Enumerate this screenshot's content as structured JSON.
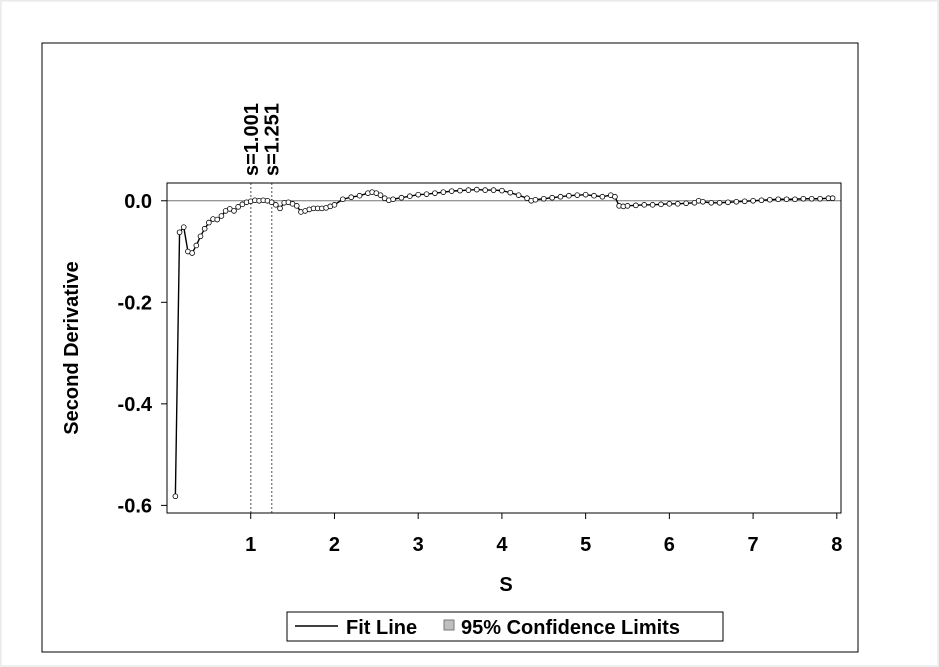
{
  "chart_data": {
    "type": "line",
    "title": "",
    "xlabel": "S",
    "ylabel": "Second Derivative",
    "xlim": [
      0,
      8.05
    ],
    "ylim": [
      -0.615,
      0.035
    ],
    "xticks": [
      1,
      2,
      3,
      4,
      5,
      6,
      7,
      8
    ],
    "xtick_labels": [
      "1",
      "2",
      "3",
      "4",
      "5",
      "6",
      "7",
      "8"
    ],
    "yticks": [
      0.0,
      -0.2,
      -0.4,
      -0.6
    ],
    "ytick_labels": [
      "0.0",
      "-0.2",
      "-0.4",
      "-0.6"
    ],
    "reference_lines": [
      {
        "axis": "x",
        "value": 1.001,
        "label": "s=1.001"
      },
      {
        "axis": "x",
        "value": 1.251,
        "label": "s=1.251"
      },
      {
        "axis": "y",
        "value": 0.0,
        "label": ""
      }
    ],
    "legend": {
      "position": "bottom",
      "entries": [
        "Fit Line",
        "95% Confidence Limits"
      ]
    },
    "series": [
      {
        "name": "Fit Line",
        "x": [
          0.1,
          0.15,
          0.2,
          0.25,
          0.3,
          0.35,
          0.4,
          0.45,
          0.5,
          0.55,
          0.6,
          0.65,
          0.7,
          0.75,
          0.8,
          0.85,
          0.9,
          0.95,
          1.0,
          1.05,
          1.1,
          1.15,
          1.2,
          1.25,
          1.3,
          1.35,
          1.4,
          1.45,
          1.5,
          1.55,
          1.6,
          1.65,
          1.7,
          1.75,
          1.8,
          1.85,
          1.9,
          1.95,
          2.0,
          2.1,
          2.2,
          2.3,
          2.4,
          2.45,
          2.5,
          2.55,
          2.6,
          2.65,
          2.7,
          2.8,
          2.9,
          3.0,
          3.1,
          3.2,
          3.3,
          3.4,
          3.5,
          3.6,
          3.7,
          3.8,
          3.9,
          4.0,
          4.1,
          4.2,
          4.3,
          4.35,
          4.4,
          4.5,
          4.6,
          4.7,
          4.8,
          4.9,
          5.0,
          5.1,
          5.2,
          5.3,
          5.35,
          5.4,
          5.45,
          5.5,
          5.6,
          5.7,
          5.8,
          5.9,
          6.0,
          6.1,
          6.2,
          6.3,
          6.35,
          6.4,
          6.5,
          6.6,
          6.7,
          6.8,
          6.9,
          7.0,
          7.1,
          7.2,
          7.3,
          7.4,
          7.5,
          7.6,
          7.7,
          7.8,
          7.9,
          7.95
        ],
        "y": [
          -0.582,
          -0.062,
          -0.052,
          -0.1,
          -0.103,
          -0.088,
          -0.07,
          -0.055,
          -0.043,
          -0.036,
          -0.037,
          -0.03,
          -0.02,
          -0.016,
          -0.02,
          -0.012,
          -0.007,
          -0.003,
          -0.001,
          0.001,
          0.0,
          0.001,
          0.0,
          -0.003,
          -0.008,
          -0.015,
          -0.004,
          -0.003,
          -0.006,
          -0.01,
          -0.022,
          -0.02,
          -0.017,
          -0.015,
          -0.015,
          -0.015,
          -0.014,
          -0.011,
          -0.008,
          0.003,
          0.007,
          0.01,
          0.015,
          0.017,
          0.015,
          0.011,
          0.005,
          0.001,
          0.003,
          0.006,
          0.009,
          0.012,
          0.013,
          0.015,
          0.017,
          0.019,
          0.02,
          0.021,
          0.022,
          0.021,
          0.021,
          0.02,
          0.016,
          0.011,
          0.005,
          0.0,
          0.002,
          0.004,
          0.006,
          0.008,
          0.01,
          0.011,
          0.012,
          0.01,
          0.008,
          0.011,
          0.008,
          -0.01,
          -0.011,
          -0.01,
          -0.009,
          -0.008,
          -0.008,
          -0.007,
          -0.006,
          -0.006,
          -0.005,
          -0.004,
          0.0,
          -0.002,
          -0.004,
          -0.004,
          -0.003,
          -0.002,
          -0.001,
          0.0,
          0.001,
          0.002,
          0.003,
          0.003,
          0.003,
          0.004,
          0.004,
          0.004,
          0.005,
          0.005
        ]
      }
    ]
  }
}
